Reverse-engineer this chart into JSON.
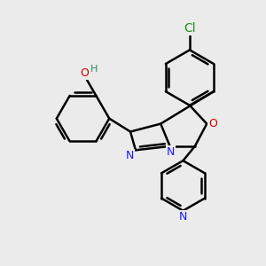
{
  "background_color": "#ebebeb",
  "bond_color": "#000000",
  "bond_width": 1.8,
  "atoms": {
    "Cl": {
      "color": "#228B22"
    },
    "O": {
      "color": "#cc0000"
    },
    "N": {
      "color": "#1a1aff"
    },
    "H": {
      "color": "#2e8b57"
    }
  },
  "figsize": [
    3.0,
    3.0
  ],
  "dpi": 100
}
